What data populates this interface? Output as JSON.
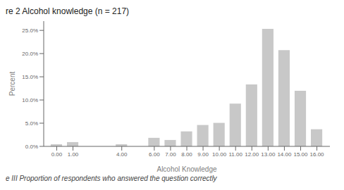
{
  "chart_data": {
    "type": "bar",
    "title": "re 2 Alcohol knowledge (n = 217)",
    "xlabel": "Alcohol Knowledge",
    "ylabel": "Percent",
    "footer": "e III  Proportion of respondents who answered the question correctly",
    "color": "#c8c8c8",
    "x": [
      0,
      1,
      4,
      6,
      7,
      8,
      9,
      10,
      11,
      12,
      13,
      14,
      15,
      16
    ],
    "values": [
      0.46,
      0.92,
      0.46,
      1.84,
      1.38,
      3.23,
      4.61,
      5.07,
      9.22,
      13.36,
      25.35,
      20.74,
      11.98,
      3.69
    ],
    "xlim": [
      -0.8,
      16.8
    ],
    "xticks": [
      {
        "value": 0,
        "label": "0.00"
      },
      {
        "value": 1,
        "label": "1.00"
      },
      {
        "value": 4,
        "label": "4.00"
      },
      {
        "value": 6,
        "label": "6.00"
      },
      {
        "value": 7,
        "label": "7.00"
      },
      {
        "value": 8,
        "label": "8.00"
      },
      {
        "value": 9,
        "label": "9.00"
      },
      {
        "value": 10,
        "label": "10.00"
      },
      {
        "value": 11,
        "label": "11.00"
      },
      {
        "value": 12,
        "label": "12.00"
      },
      {
        "value": 13,
        "label": "13.00"
      },
      {
        "value": 14,
        "label": "14.00"
      },
      {
        "value": 15,
        "label": "15.00"
      },
      {
        "value": 16,
        "label": "16.00"
      }
    ],
    "ylim": [
      0,
      27
    ],
    "yticks": [
      {
        "value": 0,
        "label": "0.0%"
      },
      {
        "value": 5,
        "label": "5.0%"
      },
      {
        "value": 10,
        "label": "10.0%"
      },
      {
        "value": 15,
        "label": "15.0%"
      },
      {
        "value": 20,
        "label": "20.0%"
      },
      {
        "value": 25,
        "label": "25.0%"
      }
    ],
    "grid": false
  }
}
